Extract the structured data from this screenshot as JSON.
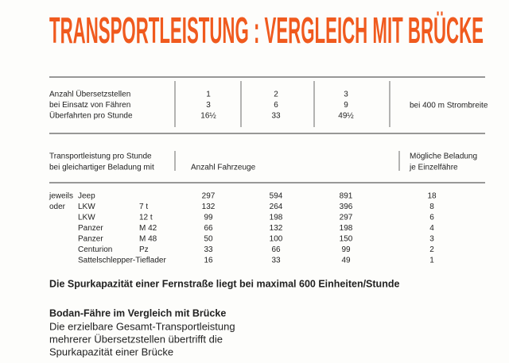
{
  "header": {
    "title": "TRANSPORTLEISTUNG : VERGLEICH MIT BRÜCKE"
  },
  "crossing_table": {
    "rows": [
      {
        "label": "Anzahl Übersetzstellen",
        "values": [
          "1",
          "2",
          "3"
        ]
      },
      {
        "label": "bei Einsatz von Fähren",
        "values": [
          "3",
          "6",
          "9"
        ]
      },
      {
        "label": "Überfahrten pro Stunde",
        "values": [
          "16½",
          "33",
          "49½"
        ]
      }
    ],
    "note": "bei 400 m Strombreite"
  },
  "load_table": {
    "row_header": [
      "Transportleistung pro Stunde",
      "bei gleichartiger Beladung mit"
    ],
    "vehicles_header": "Anzahl Fahrzeuge",
    "capacity_header": [
      "Mögliche Beladung",
      "je Einzelfähre"
    ],
    "rows": [
      {
        "prefix": "jeweils",
        "vehicle": "Jeep",
        "values": [
          "297",
          "594",
          "891",
          "18"
        ]
      },
      {
        "prefix": "oder",
        "vehicle": "LKW",
        "spec": "7 t",
        "values": [
          "132",
          "264",
          "396",
          "8"
        ]
      },
      {
        "vehicle": "LKW",
        "spec": "12 t",
        "values": [
          "99",
          "198",
          "297",
          "6"
        ]
      },
      {
        "vehicle": "Panzer",
        "spec": "M 42",
        "values": [
          "66",
          "132",
          "198",
          "4"
        ]
      },
      {
        "vehicle": "Panzer",
        "spec": "M 48",
        "values": [
          "50",
          "100",
          "150",
          "3"
        ]
      },
      {
        "vehicle": "Centurion",
        "spec": "Pz",
        "values": [
          "33",
          "66",
          "99",
          "2"
        ]
      },
      {
        "vehicle": "Sattelschlepper-Tieflader",
        "values": [
          "16",
          "33",
          "49",
          "1"
        ]
      }
    ]
  },
  "statement": "Die Spurkapazität einer Fernstraße liegt bei maximal 600 Einheiten/Stunde",
  "comparison": {
    "heading": "Bodan-Fähre im Vergleich mit Brücke",
    "lines": [
      "Die erzielbare Gesamt-Transportleistung",
      "mehrerer Übersetzstellen übertrifft die",
      "Spurkapazität einer Brücke"
    ]
  }
}
